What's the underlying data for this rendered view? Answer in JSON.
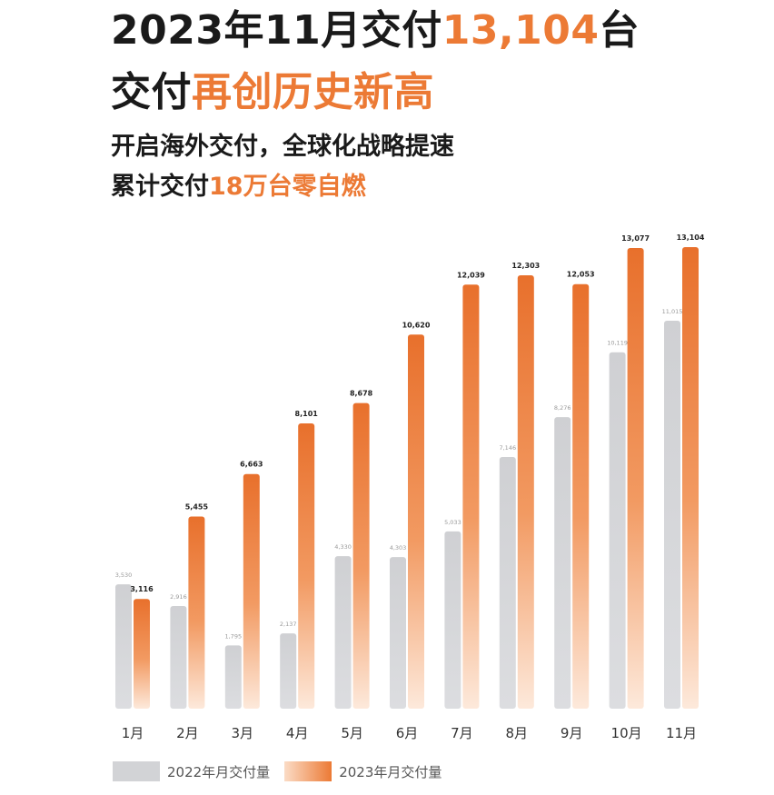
{
  "headline": {
    "line1_prefix": "2023年11月交付",
    "line1_accent": "13,104",
    "line1_suffix": "台",
    "line2_prefix": "交付",
    "line2_accent": "再创历史新高",
    "line3": "开启海外交付，全球化战略提速",
    "line4_prefix": "累计交付",
    "line4_accent": "18万台零自燃"
  },
  "colors": {
    "accent": "#ec7a35",
    "gray_bar": "#d2d3d6",
    "orange_top": "#e8702c",
    "orange_bottom": "#fde9db"
  },
  "chart_data": {
    "type": "bar",
    "categories": [
      "1月",
      "2月",
      "3月",
      "4月",
      "5月",
      "6月",
      "7月",
      "8月",
      "9月",
      "10月",
      "11月"
    ],
    "series": [
      {
        "name": "2022年月交付量",
        "values": [
          3530,
          2916,
          1795,
          2137,
          4330,
          4303,
          5033,
          7146,
          8276,
          10119,
          11015
        ],
        "labels": [
          "3,530",
          "2,916",
          "1,795",
          "2,137",
          "4,330",
          "4,303",
          "5,033",
          "7,146",
          "8,276",
          "10,119",
          "11,015"
        ]
      },
      {
        "name": "2023年月交付量",
        "values": [
          3116,
          5455,
          6663,
          8101,
          8678,
          10620,
          12039,
          12303,
          12053,
          13077,
          13104
        ],
        "labels": [
          "3,116",
          "5,455",
          "6,663",
          "8,101",
          "8,678",
          "10,620",
          "12,039",
          "12,303",
          "12,053",
          "13,077",
          "13,104"
        ]
      }
    ],
    "ylim": [
      0,
      14300
    ],
    "grid": false,
    "legend_position": "bottom-left"
  }
}
